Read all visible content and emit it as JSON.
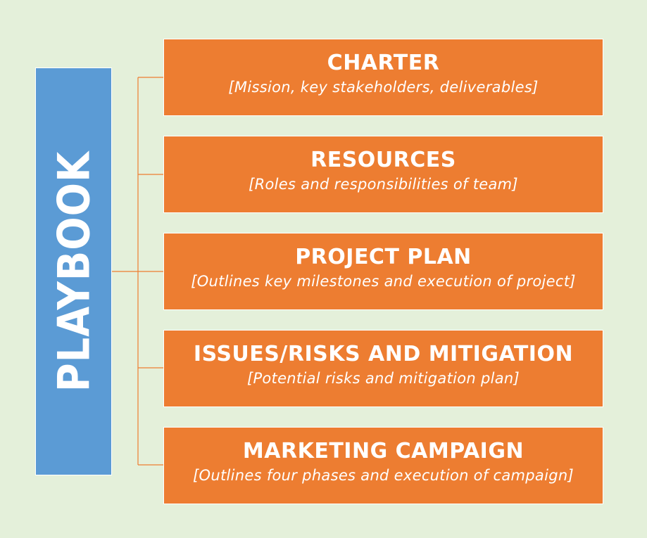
{
  "root": {
    "label": "PLAYBOOK"
  },
  "nodes": [
    {
      "title": "CHARTER",
      "subtitle": "[Mission, key stakeholders, deliverables]"
    },
    {
      "title": "RESOURCES",
      "subtitle": "[Roles and responsibilities of team]"
    },
    {
      "title": "PROJECT PLAN",
      "subtitle": "[Outlines key milestones and execution of project]"
    },
    {
      "title": "ISSUES/RISKS AND MITIGATION",
      "subtitle": "[Potential risks and mitigation plan]"
    },
    {
      "title": "MARKETING CAMPAIGN",
      "subtitle": "[Outlines four phases and execution of campaign]"
    }
  ],
  "colors": {
    "background": "#e4f0da",
    "root": "#5b9bd5",
    "node": "#ed7d31",
    "connector": "#ed7d31",
    "text": "#ffffff"
  }
}
